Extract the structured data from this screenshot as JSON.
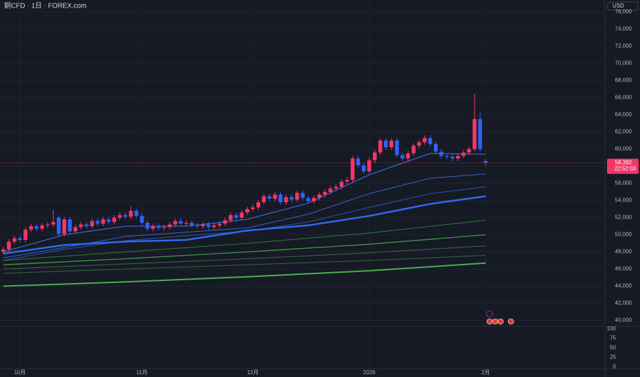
{
  "chart_data": {
    "type": "candlestick",
    "title": "銅CFD · 1日 · FOREX.com",
    "currency": "USD",
    "categories": [
      null,
      null,
      null,
      "10月",
      null,
      null,
      null,
      null,
      null,
      null,
      null,
      null,
      null,
      null,
      null,
      null,
      null,
      null,
      null,
      null,
      null,
      null,
      null,
      null,
      null,
      "11月",
      null,
      null,
      null,
      null,
      null,
      null,
      null,
      null,
      null,
      null,
      null,
      null,
      null,
      null,
      null,
      null,
      null,
      null,
      null,
      "12月",
      null,
      null,
      null,
      null,
      null,
      null,
      null,
      null,
      null,
      null,
      null,
      null,
      null,
      null,
      null,
      null,
      null,
      null,
      null,
      null,
      "2026",
      null,
      null,
      null,
      null,
      null,
      null,
      null,
      null,
      null,
      null,
      null,
      null,
      null,
      null,
      null,
      null,
      null,
      null,
      null,
      null,
      "2月"
    ],
    "open": [
      48000,
      48300,
      49200,
      49600,
      49400,
      50600,
      51000,
      50700,
      51100,
      51200,
      52000,
      50100,
      51800,
      50400,
      50900,
      51200,
      51000,
      51600,
      51300,
      51800,
      51500,
      52000,
      52300,
      52100,
      52800,
      52200,
      51400,
      50700,
      51000,
      50800,
      50900,
      51200,
      51600,
      51300,
      51400,
      51100,
      51000,
      51200,
      50900,
      51100,
      51300,
      51700,
      52300,
      52000,
      52600,
      53000,
      53200,
      53800,
      54500,
      54200,
      54700,
      53800,
      54400,
      54100,
      54900,
      54300,
      53900,
      54300,
      54700,
      55000,
      55400,
      55600,
      56200,
      56400,
      58900,
      58100,
      57400,
      58700,
      59600,
      61000,
      60200,
      61000,
      59300,
      58900,
      59500,
      60400,
      60800,
      61300,
      60600,
      59700,
      59200,
      59100,
      58900,
      59200,
      59600,
      60000,
      63500,
      58600
    ],
    "high": [
      48600,
      49500,
      49900,
      49900,
      50900,
      51300,
      51300,
      51400,
      51500,
      52900,
      52300,
      52100,
      52100,
      51200,
      51500,
      51500,
      51900,
      51900,
      52100,
      52100,
      52300,
      52600,
      52600,
      53300,
      53100,
      52500,
      51700,
      51300,
      51300,
      51200,
      51500,
      51900,
      51900,
      51700,
      51700,
      51400,
      51500,
      51500,
      51400,
      51600,
      52000,
      52600,
      52600,
      52900,
      53300,
      53500,
      54100,
      54800,
      54800,
      55000,
      55000,
      54700,
      54700,
      55200,
      55200,
      54600,
      54600,
      55000,
      55300,
      55700,
      55900,
      56500,
      56700,
      59200,
      59200,
      58400,
      59000,
      59900,
      61300,
      61300,
      61300,
      61300,
      59600,
      59800,
      60700,
      61100,
      61600,
      61600,
      60900,
      60000,
      59500,
      59400,
      59500,
      59900,
      60300,
      66500,
      64300,
      58900
    ],
    "low": [
      47700,
      48000,
      48900,
      49100,
      49100,
      50300,
      50400,
      50400,
      50800,
      50900,
      49800,
      49800,
      50100,
      50100,
      50600,
      50700,
      50700,
      51000,
      51000,
      51200,
      51200,
      51700,
      51800,
      51800,
      51900,
      51100,
      50400,
      50400,
      50500,
      50500,
      50600,
      50900,
      51000,
      51000,
      50800,
      50700,
      50700,
      50600,
      50600,
      50800,
      51000,
      51400,
      51700,
      51700,
      52300,
      52700,
      52900,
      53500,
      53900,
      53900,
      53500,
      53500,
      53800,
      53800,
      54000,
      53600,
      53600,
      54000,
      54400,
      54700,
      55100,
      55300,
      55900,
      56100,
      57800,
      57100,
      57100,
      58400,
      59300,
      59900,
      59900,
      59000,
      58600,
      58600,
      59200,
      60100,
      60500,
      60300,
      59400,
      58900,
      58800,
      58600,
      58600,
      58900,
      59300,
      59700,
      59700,
      58100
    ],
    "close": [
      48300,
      49200,
      49600,
      49400,
      50600,
      51000,
      50700,
      51100,
      51200,
      51500,
      50100,
      51800,
      50400,
      50900,
      51200,
      51000,
      51600,
      51300,
      51800,
      51500,
      52000,
      52300,
      52100,
      52800,
      52200,
      51400,
      50700,
      51000,
      50800,
      50900,
      51200,
      51600,
      51300,
      51400,
      51100,
      51000,
      51200,
      50900,
      51100,
      51300,
      51700,
      52300,
      52000,
      52600,
      53000,
      53200,
      53800,
      54500,
      54200,
      54700,
      53800,
      54400,
      54100,
      54900,
      54300,
      53900,
      54300,
      54700,
      55000,
      55400,
      55600,
      56200,
      56400,
      58900,
      58100,
      57400,
      58700,
      59600,
      61000,
      60200,
      61000,
      59300,
      58900,
      59500,
      60400,
      60800,
      61300,
      60600,
      59700,
      59200,
      59100,
      58900,
      59200,
      59600,
      60000,
      63500,
      60000,
      58392
    ],
    "up_color": "#f23668",
    "down_color": "#2f62f5",
    "series": [
      {
        "color": "#3d7bf0",
        "line_width": 1,
        "x": [
          0,
          11,
          22,
          33,
          44,
          55,
          66,
          77,
          87
        ],
        "values": [
          48000,
          50000,
          51000,
          51000,
          51800,
          53700,
          57000,
          59500,
          59400
        ]
      },
      {
        "color": "#3466d6",
        "line_width": 1,
        "x": [
          0,
          11,
          22,
          33,
          44,
          55,
          66,
          77,
          87
        ],
        "values": [
          47300,
          48500,
          49800,
          50300,
          50800,
          52400,
          54800,
          56600,
          57100
        ]
      },
      {
        "color": "#2d55b5",
        "line_width": 1,
        "x": [
          0,
          11,
          22,
          33,
          44,
          55,
          66,
          77,
          87
        ],
        "values": [
          47000,
          48300,
          49300,
          49900,
          50400,
          51500,
          53200,
          54800,
          55600
        ]
      },
      {
        "color": "#2f6af0",
        "line_width": 2.5,
        "x": [
          0,
          11,
          22,
          33,
          44,
          55,
          66,
          77,
          87
        ],
        "values": [
          47800,
          48800,
          49200,
          49400,
          50500,
          51100,
          52200,
          53600,
          54500
        ]
      },
      {
        "color": "#2f7d3a",
        "line_width": 1,
        "x": [
          0,
          22,
          44,
          66,
          87
        ],
        "values": [
          47000,
          48000,
          49000,
          50200,
          51700
        ]
      },
      {
        "color": "#3e9a45",
        "line_width": 1.3,
        "x": [
          0,
          22,
          44,
          66,
          87
        ],
        "values": [
          46500,
          47200,
          48000,
          48900,
          50000
        ]
      },
      {
        "color": "#3a6e40",
        "line_width": 1,
        "x": [
          0,
          22,
          44,
          66,
          87
        ],
        "values": [
          46000,
          46600,
          47200,
          47900,
          48700
        ]
      },
      {
        "color": "#356a3a",
        "line_width": 1,
        "x": [
          0,
          22,
          44,
          66,
          87
        ],
        "values": [
          45500,
          46000,
          46500,
          47000,
          47600
        ]
      },
      {
        "color": "#4caf50",
        "line_width": 2,
        "x": [
          0,
          22,
          44,
          66,
          87
        ],
        "values": [
          44000,
          44500,
          45100,
          45800,
          46700
        ]
      }
    ],
    "last_price": {
      "value": 58392,
      "label": "58,392"
    },
    "countdown": "22:52:03",
    "xlim": [
      -0.6,
      108.4
    ],
    "ylim": [
      39400,
      77400
    ],
    "yticks": [
      {
        "value": 40000,
        "label": "40,000"
      },
      {
        "value": 42000,
        "label": "42,000"
      },
      {
        "value": 44000,
        "label": "44,000"
      },
      {
        "value": 46000,
        "label": "46,000"
      },
      {
        "value": 48000,
        "label": "48,000"
      },
      {
        "value": 50000,
        "label": "50,000"
      },
      {
        "value": 52000,
        "label": "52,000"
      },
      {
        "value": 54000,
        "label": "54,000"
      },
      {
        "value": 56000,
        "label": "56,000"
      },
      {
        "value": 58000,
        "label": "58,000"
      },
      {
        "value": 60000,
        "label": "60,000"
      },
      {
        "value": 62000,
        "label": "62,000"
      },
      {
        "value": 64000,
        "label": "64,000"
      },
      {
        "value": 66000,
        "label": "66,000"
      },
      {
        "value": 68000,
        "label": "68,000"
      },
      {
        "value": 70000,
        "label": "70,000"
      },
      {
        "value": 72000,
        "label": "72,000"
      },
      {
        "value": 74000,
        "label": "74,000"
      },
      {
        "value": 76000,
        "label": "76,000"
      }
    ],
    "grid": true,
    "lower_pane": {
      "ylim": [
        -5,
        105
      ],
      "yticks": [
        0,
        25,
        50,
        75,
        100
      ]
    }
  }
}
